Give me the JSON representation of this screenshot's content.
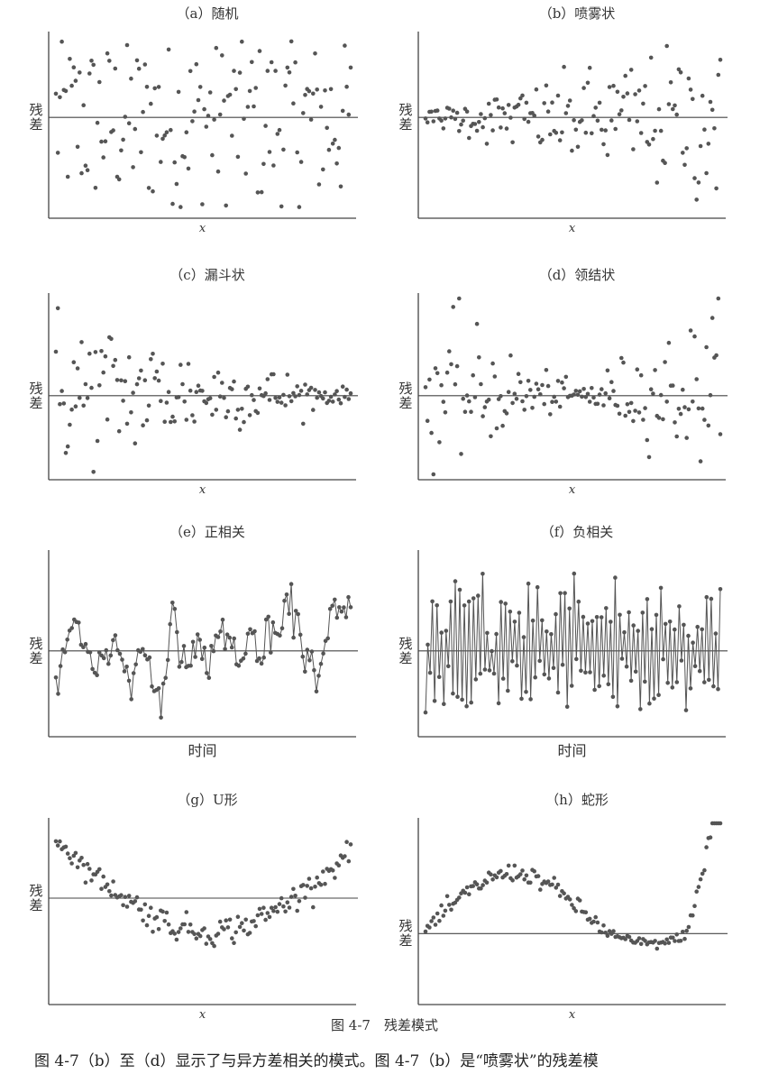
{
  "chart_data": [
    {
      "id": "a",
      "type": "scatter",
      "title": "（a）随机",
      "xlabel": "x",
      "ylabel": "残差",
      "pattern": "random"
    },
    {
      "id": "b",
      "type": "scatter",
      "title": "（b）喷雾状",
      "xlabel": "x",
      "ylabel": "残差",
      "pattern": "spray"
    },
    {
      "id": "c",
      "type": "scatter",
      "title": "（c）漏斗状",
      "xlabel": "x",
      "ylabel": "残差",
      "pattern": "funnel"
    },
    {
      "id": "d",
      "type": "scatter",
      "title": "（d）领结状",
      "xlabel": "x",
      "ylabel": "残差",
      "pattern": "bowtie"
    },
    {
      "id": "e",
      "type": "line",
      "title": "（e）正相关",
      "xlabel": "时间",
      "ylabel": "残差",
      "pattern": "positive-autocorrelation"
    },
    {
      "id": "f",
      "type": "line",
      "title": "（f）负相关",
      "xlabel": "时间",
      "ylabel": "残差",
      "pattern": "negative-autocorrelation"
    },
    {
      "id": "g",
      "type": "scatter",
      "title": "（g）U形",
      "xlabel": "x",
      "ylabel": "残差",
      "pattern": "u-shape"
    },
    {
      "id": "h",
      "type": "scatter",
      "title": "（h）蛇形",
      "xlabel": "x",
      "ylabel": "残差",
      "pattern": "snake"
    }
  ],
  "caption": "图 4-7　残差模式",
  "body_text": "图 4-7（b）至（d）显示了与异方差相关的模式。图 4-7（b）是“喷雾状”的残差模",
  "colors": {
    "points": "#555555",
    "axis": "#444444",
    "text": "#333333"
  }
}
